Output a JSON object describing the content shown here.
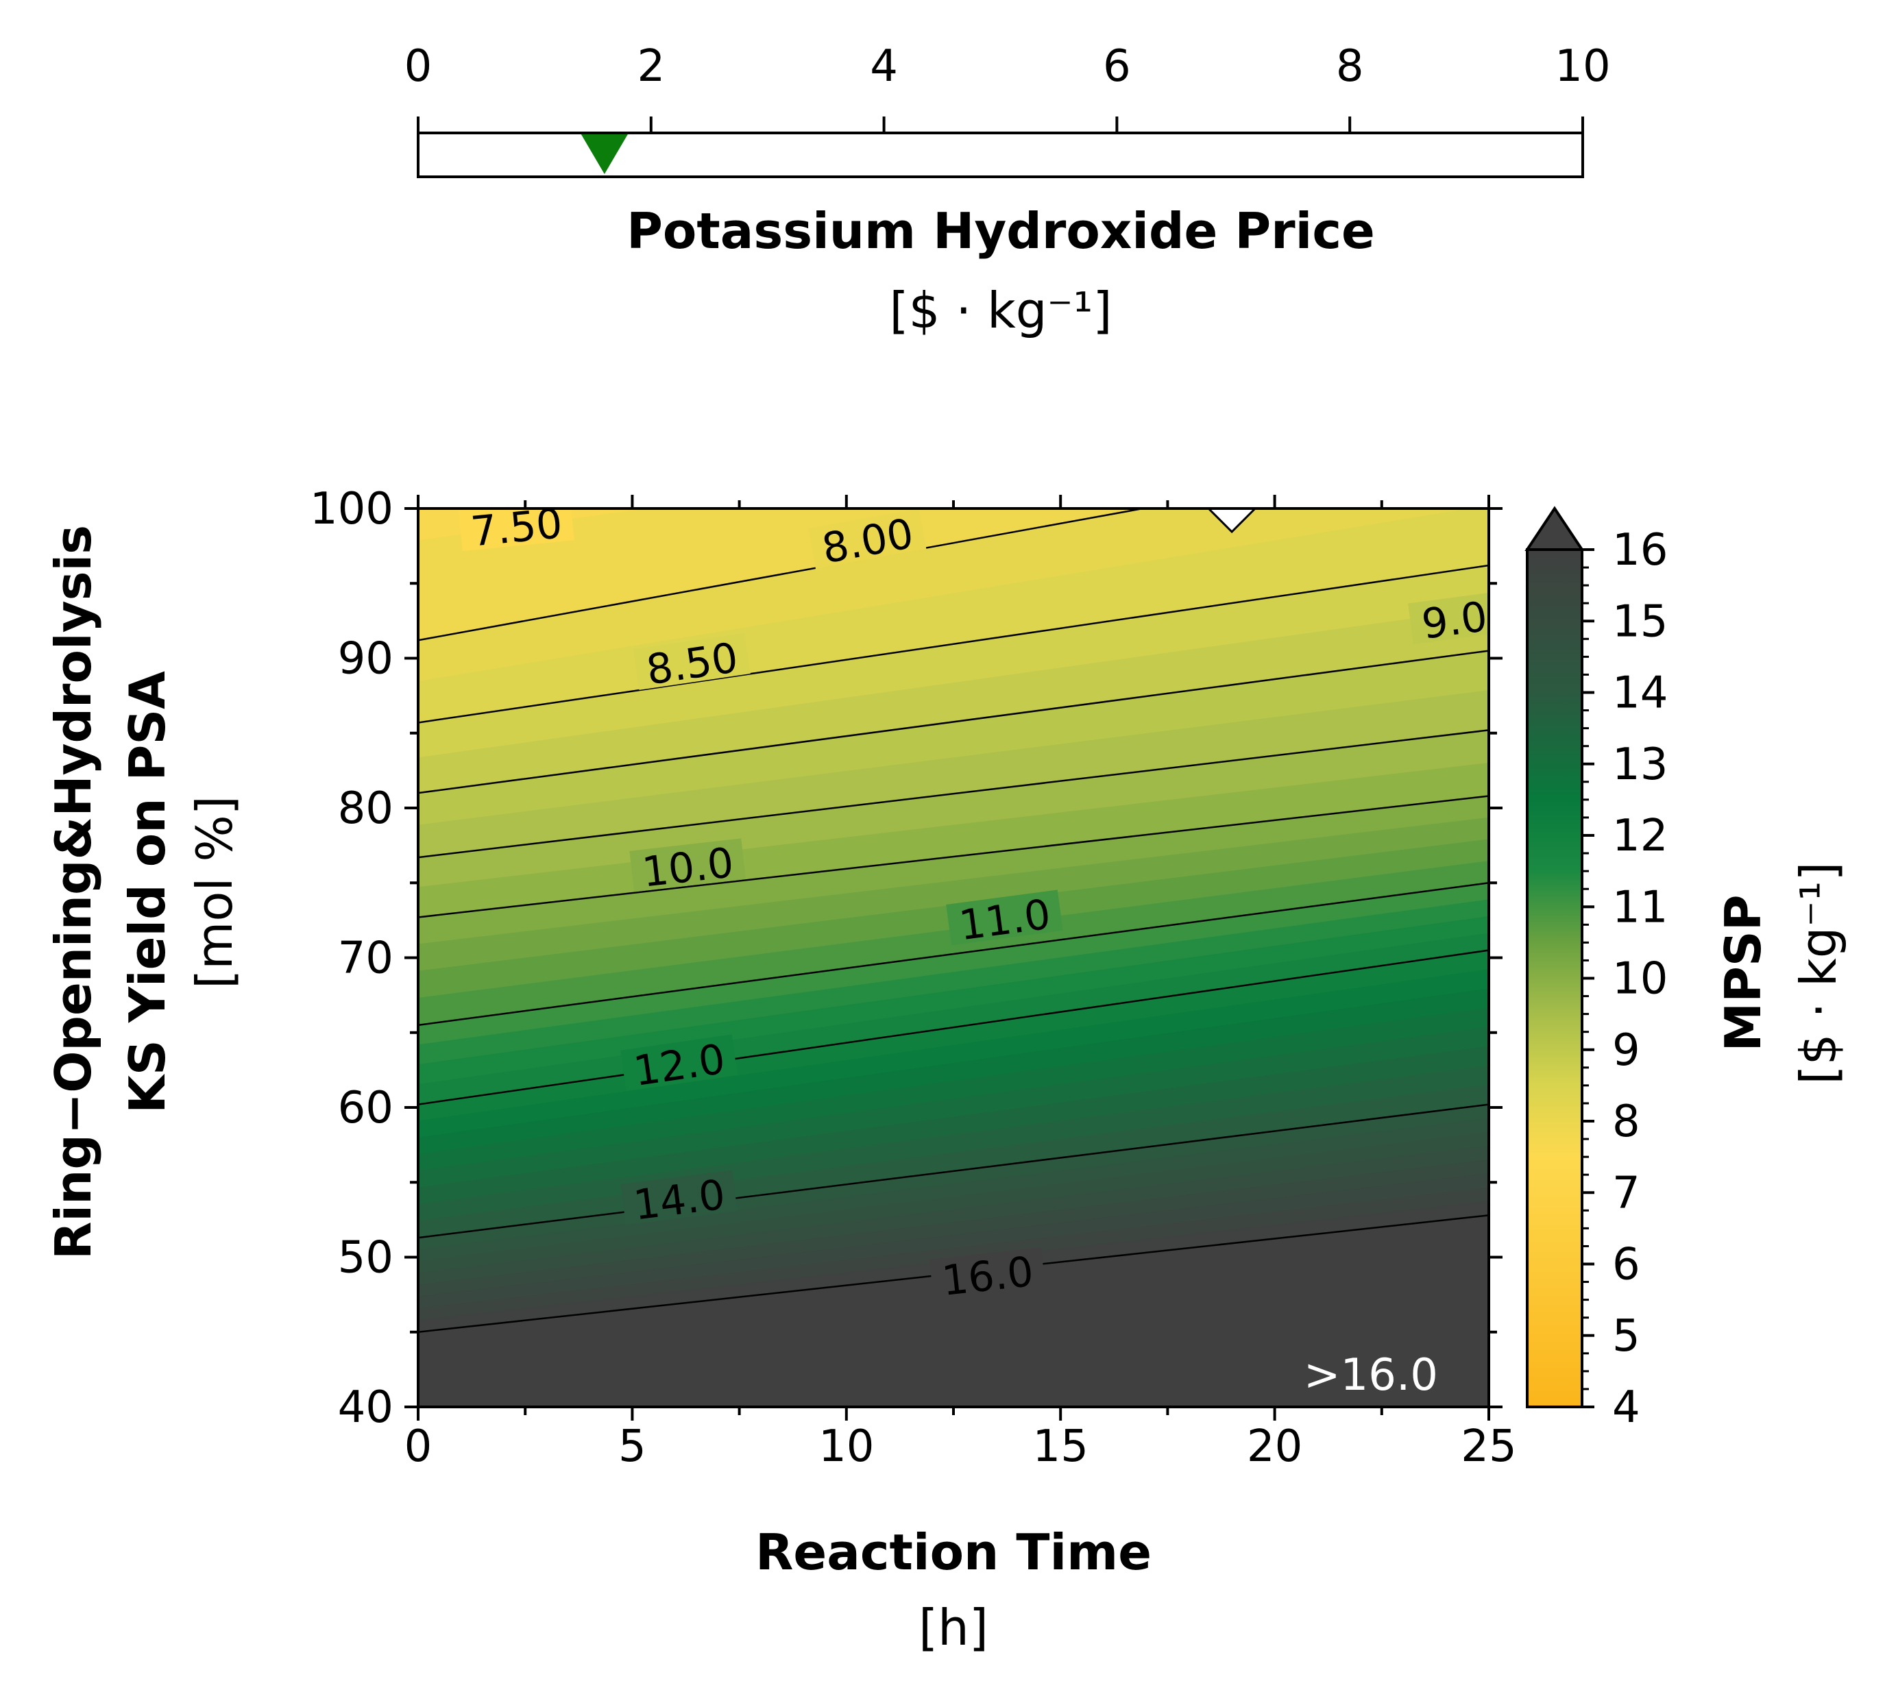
{
  "chart_data": [
    {
      "type": "slider",
      "title": "Potassium Hydroxide Price",
      "unit": "[$ · kg⁻¹]",
      "range": [
        0,
        10
      ],
      "ticks": [
        0,
        2,
        4,
        6,
        8,
        10
      ],
      "tick_labels": [
        "0",
        "2",
        "4",
        "6",
        "8",
        "10"
      ],
      "marker_value": 1.6,
      "marker_color": "#0a7d0a"
    },
    {
      "type": "contour",
      "xlabel": "Reaction Time",
      "xunit": "[h]",
      "ylabel_line1": "Ring−Opening&Hydrolysis",
      "ylabel_line2": "KS Yield on PSA",
      "yunit": "[mol %]",
      "xlim": [
        0,
        25
      ],
      "ylim": [
        40,
        100
      ],
      "x_ticks": [
        0,
        5,
        10,
        15,
        20,
        25
      ],
      "x_tick_labels": [
        "0",
        "5",
        "10",
        "15",
        "20",
        "25"
      ],
      "y_ticks": [
        40,
        50,
        60,
        70,
        80,
        90,
        100
      ],
      "y_tick_labels": [
        "40",
        "50",
        "60",
        "70",
        "80",
        "90",
        "100"
      ],
      "contour_lines": [
        {
          "level": 7.5,
          "label": "7.50",
          "x": [
            0,
            25
          ],
          "y": [
            104.5,
            111.5
          ]
        },
        {
          "level": 8.0,
          "label": "8.00",
          "x": [
            0,
            25
          ],
          "y": [
            91.2,
            104.2
          ]
        },
        {
          "level": 8.5,
          "label": "8.50",
          "x": [
            0,
            25
          ],
          "y": [
            85.7,
            96.2
          ]
        },
        {
          "level": 9.0,
          "label": "9.0",
          "x": [
            0,
            25
          ],
          "y": [
            81.0,
            90.5
          ]
        },
        {
          "level": 9.5,
          "label": "",
          "x": [
            0,
            25
          ],
          "y": [
            76.7,
            85.2
          ]
        },
        {
          "level": 10.0,
          "label": "10.0",
          "x": [
            0,
            25
          ],
          "y": [
            72.7,
            80.8
          ]
        },
        {
          "level": 11.0,
          "label": "11.0",
          "x": [
            0,
            25
          ],
          "y": [
            65.5,
            75.0
          ]
        },
        {
          "level": 12.0,
          "label": "12.0",
          "x": [
            0,
            25
          ],
          "y": [
            60.2,
            70.5
          ]
        },
        {
          "level": 14.0,
          "label": "14.0",
          "x": [
            0,
            25
          ],
          "y": [
            51.3,
            60.2
          ]
        },
        {
          "level": 16.0,
          "label": "16.0",
          "x": [
            0,
            25
          ],
          "y": [
            45.0,
            52.8
          ]
        }
      ],
      "contour_label_positions": [
        {
          "label": "7.50",
          "x": 2.3,
          "y": 98.7
        },
        {
          "label": "8.00",
          "x": 10.5,
          "y": 97.8
        },
        {
          "label": "8.50",
          "x": 6.4,
          "y": 89.6
        },
        {
          "label": "9.0",
          "x": 24.2,
          "y": 92.5
        },
        {
          "label": "10.0",
          "x": 6.3,
          "y": 76.0
        },
        {
          "label": "11.0",
          "x": 13.7,
          "y": 72.5
        },
        {
          "label": "12.0",
          "x": 6.1,
          "y": 62.8
        },
        {
          "label": "14.0",
          "x": 6.1,
          "y": 53.8
        },
        {
          "label": "16.0",
          "x": 13.3,
          "y": 48.7
        }
      ],
      "region_label": ">16.0",
      "marker": {
        "x": 19,
        "y": 100,
        "shape": "triangle-down",
        "color": "#ffffff"
      },
      "colorbar": {
        "label": "MPSP",
        "unit": "[$ · kg⁻¹]",
        "range": [
          4,
          16
        ],
        "ticks": [
          4,
          5,
          6,
          7,
          8,
          9,
          10,
          11,
          12,
          13,
          14,
          15,
          16
        ],
        "tick_labels": [
          "4",
          "5",
          "6",
          "7",
          "8",
          "9",
          "10",
          "11",
          "12",
          "13",
          "14",
          "15",
          "16"
        ],
        "extend": "max",
        "colors": [
          "#fbb51b",
          "#fdd94e",
          "#d8d44e",
          "#a6bd4a",
          "#6aa140",
          "#1b8a42",
          "#087a3c",
          "#2b5a40",
          "#404040"
        ],
        "color_stops": [
          4,
          7.5,
          8.5,
          9.5,
          10.5,
          11.5,
          12.5,
          14,
          16
        ]
      }
    }
  ]
}
